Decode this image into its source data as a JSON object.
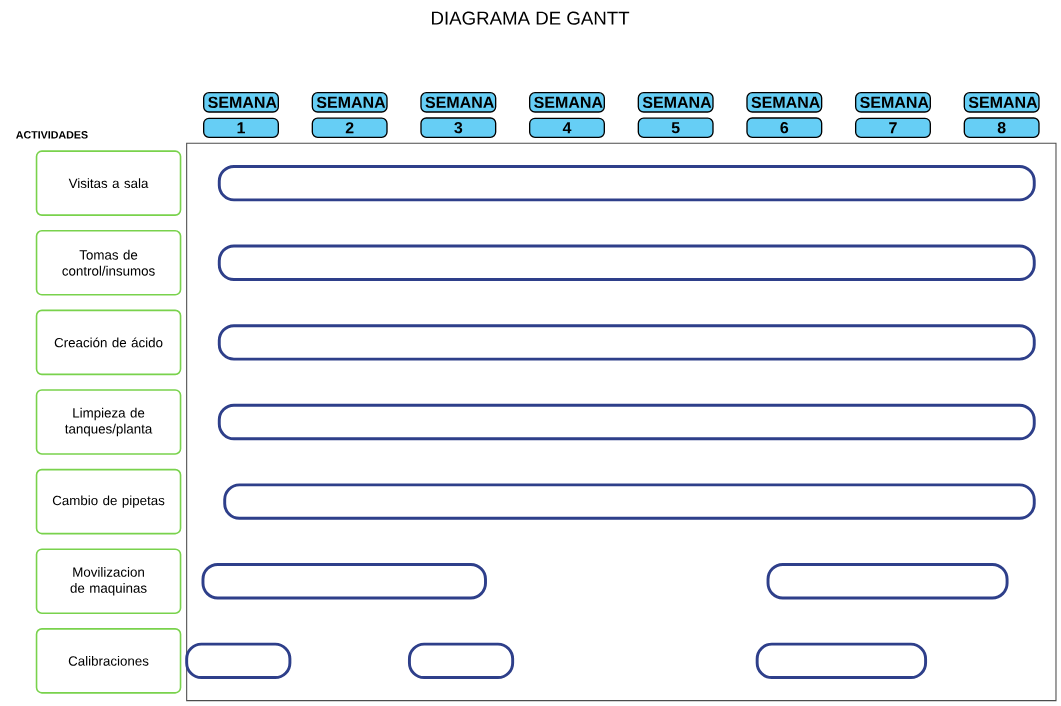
{
  "chart_data": {
    "type": "bar",
    "orientation": "horizontal",
    "title": "DIAGRAMA DE GANTT",
    "ylabel": "ACTIVIDADES",
    "categories": [
      "Visitas a sala",
      "Tomas de control/insumos",
      "Creación de ácido",
      "Limpieza de tanques/planta",
      "Cambio de pipetas",
      "Movilizacion de maquinas",
      "Calibraciones"
    ],
    "xlim": [
      0.5,
      8.5
    ],
    "xticks": [
      1,
      2,
      3,
      4,
      5,
      6,
      7,
      8
    ],
    "annotations": [
      "SEMANA",
      "SEMANA",
      "SEMANA",
      "SEMANA",
      "SEMANA",
      "SEMANA",
      "SEMANA",
      "SEMANA"
    ],
    "series": [
      {
        "color": "#2e3f8a",
        "values": [
          7.5,
          7.5,
          7.5,
          7.5,
          7.45,
          2.6,
          0.95
        ],
        "base": [
          0.8,
          0.8,
          0.8,
          0.8,
          0.85,
          0.65,
          0.5
        ]
      },
      {
        "color": "#2e3f8a",
        "values": [
          null,
          null,
          null,
          null,
          null,
          2.2,
          0.95
        ],
        "base": [
          null,
          null,
          null,
          null,
          null,
          5.85,
          2.55
        ]
      },
      {
        "color": "#2e3f8a",
        "values": [
          null,
          null,
          null,
          null,
          null,
          null,
          1.55
        ],
        "base": [
          null,
          null,
          null,
          null,
          null,
          null,
          5.75
        ]
      }
    ]
  }
}
